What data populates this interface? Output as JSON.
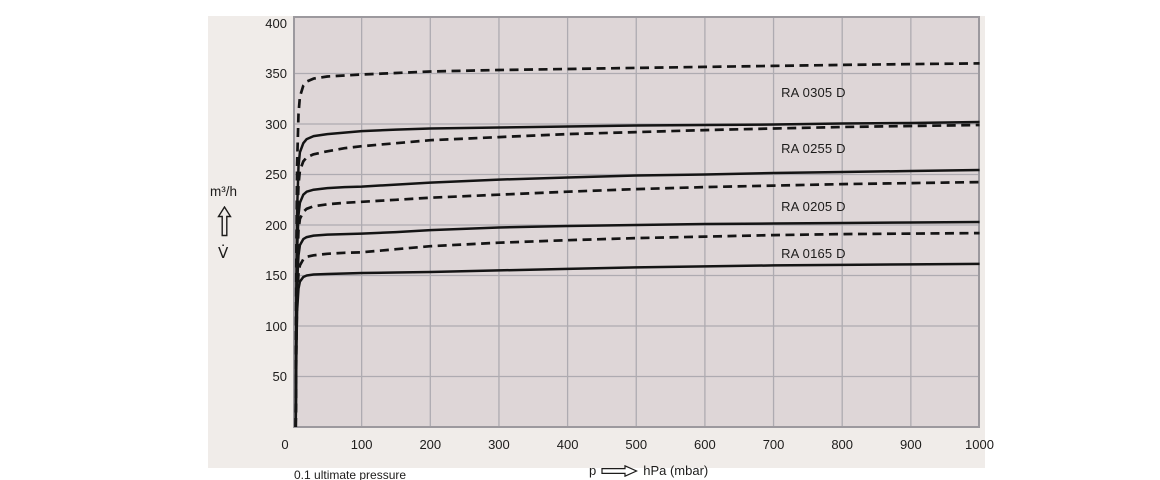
{
  "colors": {
    "page_bg": "#ffffff",
    "panel_bg": "#f0ece9",
    "plot_bg": "#ded6d7",
    "grid": "#aeabb1",
    "plot_border": "#9c999e",
    "curve": "#141414",
    "text": "#1d1c1b"
  },
  "axes": {
    "x_caption_prefix": "p",
    "x_caption_unit": "hPa (mbar)",
    "x_note": "0.1 ultimate pressure",
    "y_unit": "m³/h",
    "y_symbol": "V̇"
  },
  "chart_data": {
    "type": "line",
    "title": "",
    "xlabel": "p (hPa mbar)",
    "ylabel": "V̇ (m³/h)",
    "xlim": [
      0,
      1000
    ],
    "ylim": [
      0,
      400
    ],
    "grid": true,
    "x_ticks": [
      0,
      100,
      200,
      300,
      400,
      500,
      600,
      700,
      800,
      900,
      1000
    ],
    "y_ticks": [
      50,
      100,
      150,
      200,
      250,
      300,
      350,
      400
    ],
    "annotations": [
      {
        "label": "RA 0305 D",
        "p": 711,
        "v": 331
      },
      {
        "label": "RA 0255 D",
        "p": 711,
        "v": 275
      },
      {
        "label": "RA 0205 D",
        "p": 711,
        "v": 218
      },
      {
        "label": "RA 0165 D",
        "p": 711,
        "v": 171
      }
    ],
    "series": [
      {
        "name": "RA 0305 D",
        "line_style": "dashed",
        "x": [
          4,
          5,
          6,
          8,
          10,
          15,
          20,
          30,
          50,
          75,
          100,
          150,
          200,
          300,
          400,
          500,
          600,
          700,
          800,
          900,
          1000
        ],
        "v": [
          0,
          180,
          260,
          310,
          327,
          338,
          342,
          345,
          347,
          348,
          349,
          350.5,
          352,
          353.5,
          354.5,
          355.5,
          356.5,
          357.5,
          358.5,
          359.3,
          360
        ]
      },
      {
        "name": "RA 0305 D",
        "line_style": "solid",
        "x": [
          4,
          5,
          6,
          8,
          10,
          15,
          20,
          30,
          50,
          75,
          100,
          150,
          200,
          300,
          400,
          500,
          600,
          700,
          800,
          900,
          1000
        ],
        "v": [
          0,
          150,
          215,
          258,
          272,
          281,
          285,
          288,
          290,
          291.5,
          293,
          294.5,
          295.5,
          296.5,
          297.5,
          298.5,
          299,
          299.5,
          300.5,
          301,
          302
        ]
      },
      {
        "name": "RA 0255 D",
        "line_style": "dashed",
        "x": [
          4,
          5,
          6,
          8,
          10,
          15,
          20,
          30,
          50,
          75,
          100,
          150,
          200,
          300,
          400,
          500,
          600,
          700,
          800,
          900,
          1000
        ],
        "v": [
          0,
          140,
          200,
          240,
          254,
          263,
          267,
          270,
          273,
          276,
          278,
          281,
          284,
          287,
          290,
          292,
          294,
          295.5,
          297,
          298,
          299
        ]
      },
      {
        "name": "RA 0255 D",
        "line_style": "solid",
        "x": [
          4,
          5,
          6,
          8,
          10,
          15,
          20,
          30,
          50,
          75,
          100,
          150,
          200,
          300,
          400,
          500,
          600,
          700,
          800,
          900,
          1000
        ],
        "v": [
          0,
          120,
          175,
          210,
          222,
          230,
          233,
          235,
          236.5,
          237.5,
          238,
          240,
          242,
          245,
          247,
          249,
          250,
          251.5,
          252.5,
          253.5,
          254.5
        ]
      },
      {
        "name": "RA 0205 D",
        "line_style": "dashed",
        "x": [
          4,
          5,
          6,
          8,
          10,
          15,
          20,
          30,
          50,
          75,
          100,
          150,
          200,
          300,
          400,
          500,
          600,
          700,
          800,
          900,
          1000
        ],
        "v": [
          0,
          110,
          160,
          195,
          206,
          213,
          216,
          218.5,
          220.5,
          222,
          223,
          225,
          227,
          230,
          233,
          235.5,
          237.5,
          239,
          240.5,
          241.5,
          242.5
        ]
      },
      {
        "name": "RA 0205 D",
        "line_style": "solid",
        "x": [
          4,
          5,
          6,
          8,
          10,
          15,
          20,
          30,
          50,
          75,
          100,
          150,
          200,
          300,
          400,
          500,
          600,
          700,
          800,
          900,
          1000
        ],
        "v": [
          0,
          95,
          142,
          170,
          180,
          186,
          188,
          189.5,
          190.5,
          191,
          191.5,
          193,
          195,
          197.5,
          199,
          200,
          201,
          201.5,
          202,
          202.5,
          203
        ]
      },
      {
        "name": "RA 0165 D",
        "line_style": "dashed",
        "x": [
          4,
          5,
          6,
          8,
          10,
          15,
          20,
          30,
          50,
          75,
          100,
          150,
          200,
          300,
          400,
          500,
          600,
          700,
          800,
          900,
          1000
        ],
        "v": [
          0,
          85,
          128,
          152,
          160,
          166,
          168.5,
          170,
          171.5,
          172.5,
          173,
          176,
          179,
          182.5,
          185,
          187,
          188.5,
          190,
          191,
          191.5,
          192
        ]
      },
      {
        "name": "RA 0165 D",
        "line_style": "solid",
        "x": [
          4,
          5,
          6,
          8,
          10,
          15,
          20,
          30,
          50,
          75,
          100,
          150,
          200,
          300,
          400,
          500,
          600,
          700,
          800,
          900,
          1000
        ],
        "v": [
          0,
          75,
          115,
          137,
          144,
          148.5,
          150,
          151,
          151.5,
          152,
          152.5,
          153,
          153.5,
          155,
          156.5,
          158,
          159,
          160,
          160.5,
          161,
          161.5
        ]
      }
    ]
  }
}
